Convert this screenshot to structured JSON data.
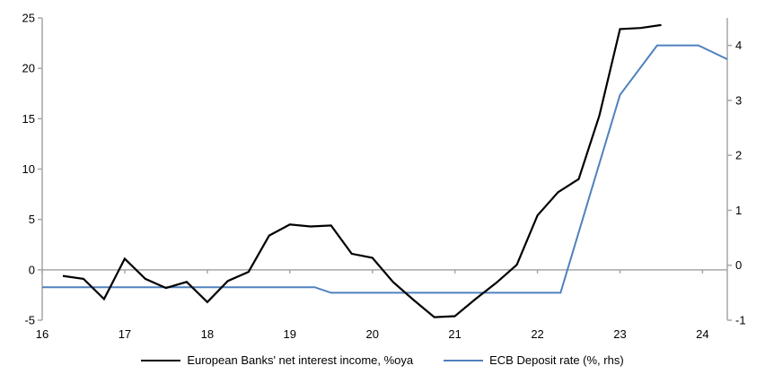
{
  "figure": {
    "background": "#ffffff"
  },
  "colors": {
    "axis_gray": "#a6a6a6",
    "series_black": "#000000",
    "series_blue": "#4f81bd",
    "text": "#000000"
  },
  "legend": {
    "items": [
      {
        "label": "European Banks' net interest income, %oya",
        "color": "#000000"
      },
      {
        "label": "ECB Deposit rate (%, rhs)",
        "color": "#4f81bd"
      }
    ]
  },
  "chart_data": {
    "type": "line",
    "title": "",
    "xlabel": "",
    "ylabel_left": "",
    "ylabel_right": "",
    "grid": "zero-line-only",
    "legend_position": "bottom",
    "x_axis": {
      "range": [
        16,
        24.3
      ],
      "ticks": [
        16,
        17,
        18,
        19,
        20,
        21,
        22,
        23,
        24
      ],
      "tick_labels": [
        "16",
        "17",
        "18",
        "19",
        "20",
        "21",
        "22",
        "23",
        "24"
      ]
    },
    "y_axis_left": {
      "range": [
        -5,
        25
      ],
      "ticks": [
        25,
        20,
        15,
        10,
        5,
        0,
        -5
      ],
      "tick_labels": [
        "25",
        "20",
        "15",
        "10",
        "5",
        "0",
        "-5"
      ]
    },
    "y_axis_right": {
      "range": [
        -1,
        4.5
      ],
      "ticks": [
        4,
        3,
        2,
        1,
        0,
        -1
      ],
      "tick_labels": [
        "4",
        "3",
        "2",
        "1",
        "0",
        "-1"
      ]
    },
    "series": [
      {
        "name": "ECB Deposit rate (%, rhs)",
        "axis": "right",
        "color": "#4f81bd",
        "stroke_width": 2,
        "x": [
          16.0,
          19.3,
          19.5,
          22.28,
          23.0,
          23.45,
          23.95,
          24.3
        ],
        "y": [
          -0.4,
          -0.4,
          -0.5,
          -0.5,
          3.1,
          4.0,
          4.0,
          3.75
        ]
      },
      {
        "name": "European Banks' net interest income, %oya",
        "axis": "left",
        "color": "#000000",
        "stroke_width": 2.2,
        "x": [
          16.25,
          16.5,
          16.75,
          17.0,
          17.25,
          17.5,
          17.75,
          18.0,
          18.25,
          18.5,
          18.75,
          19.0,
          19.25,
          19.5,
          19.75,
          20.0,
          20.25,
          20.5,
          20.75,
          21.0,
          21.25,
          21.5,
          21.75,
          22.0,
          22.25,
          22.5,
          22.75,
          23.0,
          23.25,
          23.5
        ],
        "y": [
          -0.6,
          -0.9,
          -2.9,
          1.1,
          -0.9,
          -1.8,
          -1.2,
          -3.2,
          -1.1,
          -0.2,
          3.4,
          4.5,
          4.3,
          4.4,
          1.6,
          1.2,
          -1.2,
          -3.0,
          -4.7,
          -4.6,
          -2.9,
          -1.3,
          0.5,
          5.4,
          7.7,
          9.0,
          15.3,
          23.9,
          24.0,
          24.3
        ]
      }
    ]
  }
}
